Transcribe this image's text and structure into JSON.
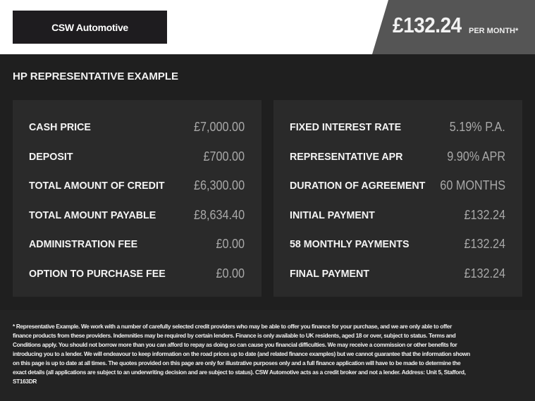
{
  "header": {
    "brand": "CSW Automotive",
    "price": "£132.24",
    "per_month": "PER MONTH*"
  },
  "title": "HP REPRESENTATIVE EXAMPLE",
  "left": [
    {
      "label": "CASH PRICE",
      "value": "£7,000.00"
    },
    {
      "label": "DEPOSIT",
      "value": "£700.00"
    },
    {
      "label": "TOTAL AMOUNT OF CREDIT",
      "value": "£6,300.00"
    },
    {
      "label": "TOTAL AMOUNT PAYABLE",
      "value": "£8,634.40"
    },
    {
      "label": "ADMINISTRATION FEE",
      "value": "£0.00"
    },
    {
      "label": "OPTION TO PURCHASE FEE",
      "value": "£0.00"
    }
  ],
  "right": [
    {
      "label": "FIXED INTEREST RATE",
      "value": "5.19% P.A."
    },
    {
      "label": "REPRESENTATIVE APR",
      "value": "9.90% APR"
    },
    {
      "label": "DURATION OF AGREEMENT",
      "value": "60 MONTHS"
    },
    {
      "label": "INITIAL PAYMENT",
      "value": "£132.24"
    },
    {
      "label": "58 MONTHLY PAYMENTS",
      "value": "£132.24"
    },
    {
      "label": "FINAL PAYMENT",
      "value": "£132.24"
    }
  ],
  "disclaimer": "* Representative Example. We work with a number of carefully selected credit providers who may be able to offer you finance for your purchase, and we are only able to offer finance products from these providers. Indemnities may be required by certain lenders. Finance is only available to UK residents, aged 18 or over, subject to status. Terms and Conditions apply. You should not borrow more than you can afford to repay as doing so can cause you financial difficulties. We may receive a commission or other benefits for introducing you to a lender. We will endeavour to keep information on the road prices up to date (and related finance examples) but we cannot guarantee that the information shown on this page is up to date at all times. The quotes provided on this page are only for illustrative purposes only and a full finance application will have to be made to determine the exact details (all applications are subject to an underwriting decision and are subject to status). CSW Automotive acts as a credit broker and not a lender. Address: Unit 5, Stafford, ST163DR"
}
